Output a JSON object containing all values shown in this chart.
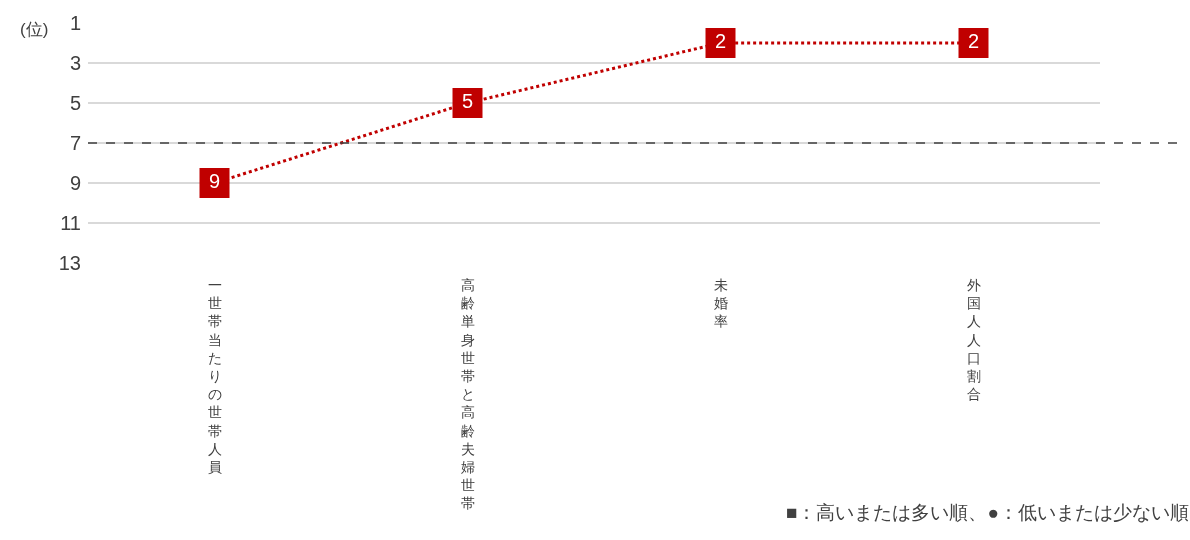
{
  "chart_data": {
    "type": "line",
    "ylabel": "(位)",
    "categories": [
      "一世帯当たりの世帯人員",
      "高齢単身世帯と高齢夫婦世帯",
      "未婚率",
      "外国人人口割合"
    ],
    "series": [
      {
        "color": "#c00000",
        "values": [
          9,
          5,
          2,
          2
        ]
      }
    ],
    "ylim": [
      13,
      1
    ],
    "yticks": [
      1,
      3,
      5,
      7,
      9,
      11,
      13
    ],
    "grid": "y",
    "marker": "square",
    "line_style": "dotted",
    "data_labels": true,
    "ref_lines": [
      {
        "axis": "y",
        "value": 7,
        "color": "#404040",
        "line_style": "dashed"
      }
    ],
    "annotations": [
      "■：高いまたは多い順、●：低いまたは少ない順"
    ]
  }
}
